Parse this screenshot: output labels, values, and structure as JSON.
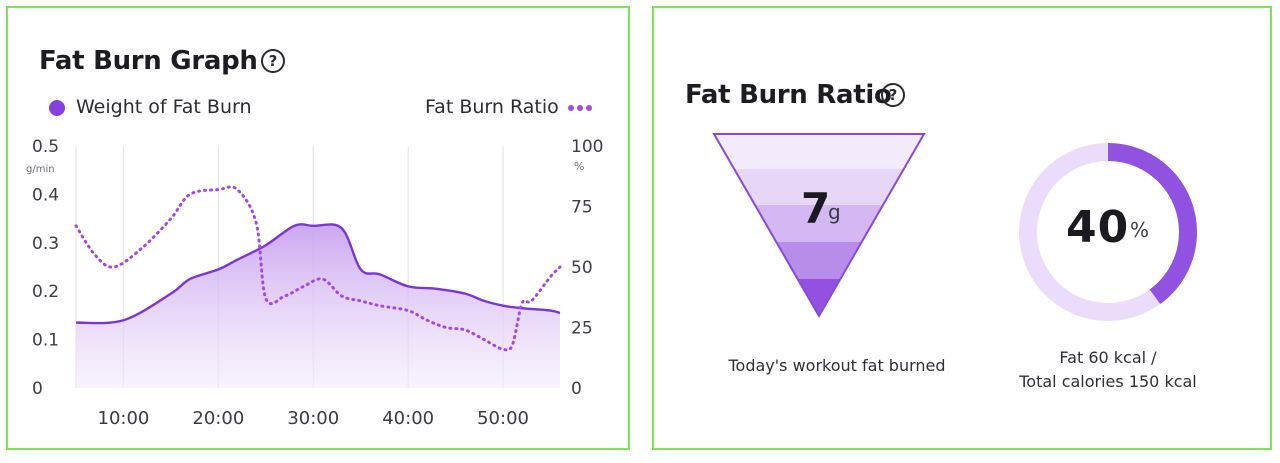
{
  "colors": {
    "accent": "#7b35d6",
    "ratio_line": "#a646e6",
    "fill_top": "#c9a3ef",
    "ring_bg": "#eadcfa",
    "grid": "#e6e6ea",
    "axis_text": "#555560",
    "border": "#7ee35a"
  },
  "graph_card": {
    "title": "Fat Burn Graph",
    "help_icon": "question-circle-icon",
    "legend_weight": "Weight of Fat Burn",
    "legend_ratio": "Fat Burn Ratio",
    "left_unit": "g/min",
    "right_unit": "%"
  },
  "ratio_card": {
    "title": "Fat Burn Ratio",
    "help_icon": "question-circle-icon",
    "grams_value": "7",
    "grams_unit": "g",
    "grams_caption": "Today's workout fat burned",
    "percent_value": "40",
    "percent_unit": "%",
    "percent_fraction": 0.4,
    "caption_line1": "Fat 60 kcal /",
    "caption_line2": "Total calories 150 kcal"
  },
  "chart_data": {
    "type": "area",
    "x_ticks": [
      "10:00",
      "20:00",
      "30:00",
      "40:00",
      "50:00"
    ],
    "x_tick_minutes": [
      10,
      20,
      30,
      40,
      50
    ],
    "xlim": [
      5,
      56
    ],
    "left_axis": {
      "ticks": [
        "0.5",
        "0.4",
        "0.3",
        "0.2",
        "0.1",
        "0"
      ],
      "ylim": [
        0,
        0.5
      ]
    },
    "right_axis": {
      "ticks": [
        "100",
        "75",
        "50",
        "25",
        "0"
      ],
      "ylim": [
        0,
        100
      ]
    },
    "grid": true,
    "legend_position": "top",
    "series": [
      {
        "name": "Weight of Fat Burn",
        "axis": "left",
        "style": "area",
        "x": [
          5,
          10,
          15,
          17,
          20,
          22,
          25,
          28,
          30,
          33,
          35,
          37,
          40,
          43,
          46,
          48,
          50,
          52,
          55,
          56
        ],
        "y": [
          0.135,
          0.14,
          0.195,
          0.225,
          0.245,
          0.265,
          0.295,
          0.335,
          0.335,
          0.33,
          0.245,
          0.235,
          0.21,
          0.205,
          0.195,
          0.18,
          0.17,
          0.165,
          0.16,
          0.155
        ]
      },
      {
        "name": "Fat Burn Ratio",
        "axis": "right",
        "style": "dotted",
        "x": [
          5,
          7,
          9,
          12,
          15,
          17,
          20,
          22,
          24,
          25,
          27,
          29,
          31,
          33,
          35,
          37,
          40,
          42,
          44,
          46,
          48,
          50,
          51,
          52,
          53,
          55,
          56
        ],
        "y": [
          67,
          55,
          50,
          58,
          70,
          80,
          82,
          82,
          68,
          37,
          38,
          42,
          45,
          38,
          36,
          34,
          32,
          28,
          25,
          24,
          20,
          16,
          18,
          35,
          36,
          46,
          50
        ]
      }
    ]
  }
}
